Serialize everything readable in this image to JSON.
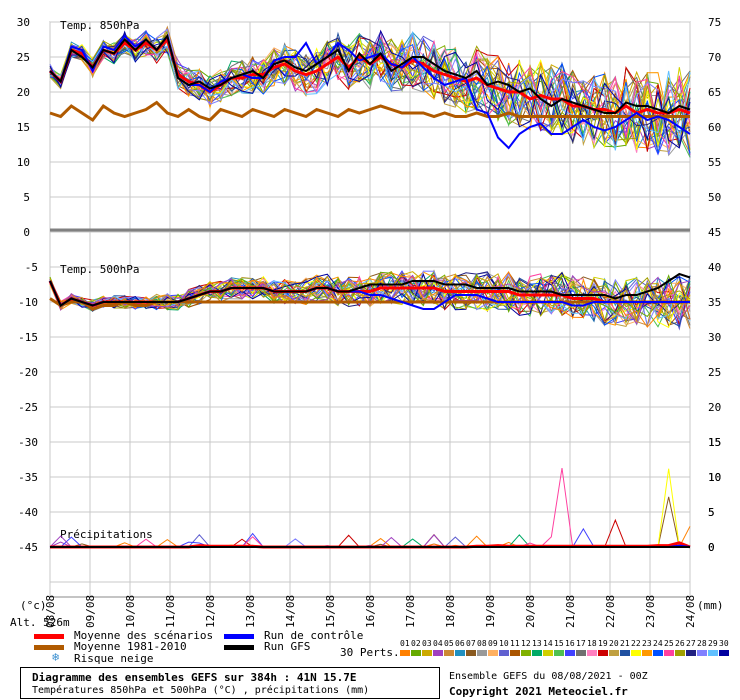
{
  "chart_data": [
    {
      "type": "line",
      "title": "Temp. 850hPa",
      "x_start": "08/08/2021",
      "x_tick_labels": [
        "08/08",
        "09/08",
        "10/08",
        "11/08",
        "12/08",
        "13/08",
        "14/08",
        "15/08",
        "16/08",
        "17/08",
        "18/08",
        "19/08",
        "20/08",
        "21/08",
        "22/08",
        "23/08",
        "24/08"
      ],
      "ylim_left": [
        -45,
        30
      ],
      "ylim_right": [
        0,
        75
      ],
      "y_ticks_left": [
        "30",
        "25",
        "20",
        "15",
        "10",
        "5",
        "0"
      ],
      "y_ticks_right": [
        "75",
        "70",
        "65",
        "60",
        "55",
        "50",
        "45"
      ],
      "series": [
        {
          "name": "Moyenne des scénarios",
          "color": "#ff0000",
          "values": [
            23,
            21.5,
            26,
            25.5,
            23.5,
            26,
            25.5,
            27,
            26,
            27,
            26,
            27.5,
            22.5,
            21.5,
            21,
            20,
            21,
            22,
            22,
            22.5,
            22.5,
            23.5,
            24,
            23,
            22.5,
            23,
            24,
            25,
            23.5,
            25,
            24,
            25,
            24,
            23.5,
            24.5,
            24,
            23,
            22.5,
            22,
            21.5,
            22,
            21,
            20.5,
            20,
            20,
            19,
            19.5,
            19,
            19,
            18,
            18,
            17.5,
            17.5,
            17,
            18,
            17,
            17.5,
            17,
            17,
            17.5,
            17
          ]
        },
        {
          "name": "Moyenne 1981-2010",
          "color": "#b05a00",
          "values": [
            17,
            16.5,
            18,
            17,
            16,
            18,
            17,
            16.5,
            17,
            17.5,
            18.5,
            17,
            16.5,
            17.5,
            16.5,
            16,
            17.5,
            17,
            16.5,
            17.5,
            17,
            16.5,
            17.5,
            17,
            16.5,
            17.5,
            17,
            16.5,
            17.5,
            17,
            17.5,
            18,
            17.5,
            17,
            17,
            17,
            16.5,
            17,
            16.5,
            16.5,
            17,
            16.5,
            16.5,
            17,
            16.5,
            16.5,
            16.5,
            16.5,
            16.5,
            16.5,
            16.5,
            16.5,
            16.5,
            16.5,
            16.5,
            16.5,
            16.5,
            16.5,
            16.5,
            16.5,
            16.5
          ]
        },
        {
          "name": "Run de contrôle",
          "color": "#0000ff",
          "values": [
            23,
            21.5,
            26.5,
            26,
            23,
            26.5,
            26,
            28,
            26.5,
            27.5,
            26,
            28,
            22,
            21,
            21,
            20,
            21.5,
            22,
            22.5,
            22,
            22,
            24.5,
            25,
            25,
            27,
            24,
            25,
            27,
            26,
            24.5,
            25,
            25.5,
            24,
            23.5,
            25,
            23.5,
            22,
            21,
            21.5,
            22,
            17.5,
            17,
            13.5,
            12,
            14,
            15,
            15.5,
            14,
            14,
            15,
            16,
            15,
            14.5,
            15,
            16,
            17,
            16,
            16.5,
            16,
            15,
            14
          ]
        },
        {
          "name": "Run GFS",
          "color": "#000000",
          "values": [
            23,
            21.5,
            26,
            25,
            23.5,
            26,
            25.5,
            27.5,
            26,
            27.5,
            26,
            28,
            22,
            21,
            21.5,
            20.5,
            21,
            22,
            22.5,
            23,
            22,
            24,
            24.5,
            23.5,
            23,
            24,
            25,
            26,
            23,
            25.5,
            24,
            25.5,
            23,
            24,
            25,
            25,
            24,
            23,
            22.5,
            22,
            23,
            21,
            21.5,
            21,
            20,
            20.5,
            19,
            18,
            19,
            18.5,
            18,
            17.5,
            17,
            17,
            18.5,
            18,
            18,
            17.5,
            17,
            18,
            17.5
          ]
        }
      ],
      "ensemble_members": 30,
      "ensemble_min_last": 9,
      "ensemble_max_last": 24
    },
    {
      "type": "line",
      "title": "Temp. 500hPa",
      "ylim_left": [
        -45,
        30
      ],
      "y_ticks_left": [
        "-5",
        "-10",
        "-15",
        "-20",
        "-25",
        "-30",
        "-35",
        "-40",
        "-45"
      ],
      "y_ticks_right": [
        "40",
        "35",
        "30",
        "25",
        "20",
        "15",
        "10",
        "5",
        "0"
      ],
      "series": [
        {
          "name": "Moyenne des scénarios",
          "color": "#ff0000",
          "values": [
            -7,
            -10.5,
            -9.5,
            -10,
            -10.5,
            -10,
            -10,
            -10,
            -10,
            -10,
            -10,
            -10,
            -10,
            -9.5,
            -9,
            -8.5,
            -8.5,
            -8,
            -8,
            -8,
            -8,
            -8.5,
            -8.5,
            -8.5,
            -8.5,
            -8,
            -8,
            -8.5,
            -8.5,
            -8.5,
            -8.5,
            -8,
            -8,
            -8,
            -8,
            -8,
            -8,
            -8.5,
            -8.5,
            -8.5,
            -8.5,
            -8.5,
            -8.5,
            -8.5,
            -9,
            -9,
            -9,
            -9,
            -9,
            -9.5,
            -9.5,
            -9.5,
            -10,
            -10,
            -10,
            -10,
            -10,
            -10,
            -10,
            -10,
            -10
          ]
        },
        {
          "name": "Moyenne 1981-2010",
          "color": "#b05a00",
          "values": [
            -9.5,
            -10.5,
            -10,
            -10,
            -11,
            -10.5,
            -10.5,
            -10,
            -10.5,
            -10.5,
            -10,
            -10,
            -10,
            -10,
            -10,
            -10,
            -10,
            -10,
            -10,
            -10,
            -10,
            -10,
            -10,
            -10,
            -10,
            -10,
            -10,
            -10,
            -10,
            -10,
            -10,
            -10,
            -10,
            -10,
            -10,
            -10,
            -10,
            -10,
            -10,
            -10,
            -10,
            -10,
            -10,
            -10,
            -10,
            -10,
            -10,
            -10,
            -10,
            -10,
            -10,
            -10,
            -10,
            -10,
            -10,
            -10,
            -10,
            -10,
            -10,
            -10,
            -10
          ]
        },
        {
          "name": "Run de contrôle",
          "color": "#0000ff",
          "values": [
            -7,
            -10.5,
            -9.5,
            -10,
            -10.5,
            -10,
            -10,
            -10,
            -10,
            -10,
            -10,
            -10,
            -10,
            -9.5,
            -9,
            -8.5,
            -8.5,
            -8,
            -8,
            -8,
            -8,
            -8.5,
            -8.5,
            -8.5,
            -8.5,
            -8,
            -8,
            -8.5,
            -8.5,
            -8.5,
            -9,
            -9,
            -9.5,
            -10,
            -10.5,
            -11,
            -11,
            -10,
            -9,
            -9,
            -9,
            -9.5,
            -10,
            -10,
            -10,
            -10,
            -10,
            -10,
            -10,
            -10.5,
            -10.5,
            -10,
            -10,
            -10,
            -10,
            -10,
            -10,
            -10,
            -10,
            -10,
            -10
          ]
        },
        {
          "name": "Run GFS",
          "color": "#000000",
          "values": [
            -7,
            -10.5,
            -9.5,
            -10,
            -10.5,
            -10,
            -10,
            -10,
            -10,
            -10,
            -10,
            -10,
            -10,
            -9.5,
            -9,
            -8.5,
            -8.5,
            -8,
            -8,
            -8,
            -8,
            -8.5,
            -8.5,
            -8.5,
            -8.5,
            -8,
            -8,
            -8.5,
            -8.5,
            -8,
            -7.5,
            -7.5,
            -7.5,
            -7.5,
            -7,
            -7,
            -7,
            -7.5,
            -7.5,
            -7.5,
            -8,
            -8,
            -8,
            -8,
            -8.5,
            -8.5,
            -8.5,
            -8.5,
            -9,
            -9,
            -9,
            -9,
            -9,
            -9.5,
            -9,
            -9,
            -8.5,
            -8,
            -7,
            -6,
            -6.5
          ]
        }
      ],
      "ensemble_members": 30
    },
    {
      "type": "line",
      "title": "Précipitations",
      "ylim_right": [
        0,
        45
      ],
      "y_ticks_right": [
        "15",
        "10",
        "5",
        "0"
      ],
      "series": [
        {
          "name": "Moyenne des scénarios",
          "color": "#ff0000",
          "values": [
            0,
            0,
            0,
            0,
            0,
            0,
            0,
            0,
            0,
            0,
            0,
            0,
            0,
            0,
            0.2,
            0.1,
            0.1,
            0.1,
            0.1,
            0.1,
            0,
            0,
            0,
            0,
            0,
            0,
            0,
            0,
            0,
            0,
            0,
            0,
            0,
            0,
            0,
            0,
            0,
            0,
            0,
            0,
            0.1,
            0.1,
            0.2,
            0.1,
            0.1,
            0.1,
            0.1,
            0.1,
            0.1,
            0.1,
            0.1,
            0.1,
            0.1,
            0.1,
            0.1,
            0.1,
            0.1,
            0.2,
            0.2,
            0.6,
            0
          ]
        },
        {
          "name": "Run de contrôle",
          "color": "#0000ff",
          "values": [
            0,
            0,
            0,
            0,
            0,
            0,
            0,
            0,
            0,
            0,
            0,
            0,
            0,
            0,
            0,
            0,
            0,
            0,
            0,
            0,
            0,
            0,
            0,
            0,
            0,
            0,
            0,
            0,
            0,
            0,
            0,
            0,
            0,
            0,
            0,
            0,
            0,
            0,
            0,
            0,
            0,
            0,
            0,
            0,
            0,
            0,
            0,
            0,
            0,
            0,
            0,
            0,
            0,
            0,
            0,
            0,
            0,
            0,
            0,
            0.2,
            0
          ]
        },
        {
          "name": "Run GFS",
          "color": "#000000",
          "values": [
            0,
            0,
            0,
            0,
            0,
            0,
            0,
            0,
            0,
            0,
            0,
            0,
            0,
            0,
            0,
            0,
            0,
            0,
            0,
            0,
            0,
            0,
            0,
            0,
            0,
            0,
            0,
            0,
            0,
            0,
            0,
            0,
            0,
            0,
            0,
            0,
            0,
            0,
            0,
            0,
            0,
            0,
            0,
            0,
            0,
            0,
            0,
            0,
            0,
            0,
            0,
            0,
            0,
            0,
            0,
            0,
            0,
            0,
            0,
            0,
            0
          ]
        }
      ],
      "ensemble_max": 13
    }
  ],
  "axis_units_left": "(°c)",
  "axis_units_right": "(mm)",
  "altitude": "Alt. 526m",
  "legend": {
    "mean": "Moyenne des scénarios",
    "climate": "Moyenne 1981-2010",
    "snow": "Risque neige",
    "control": "Run de contrôle",
    "gfs": "Run GFS",
    "perts": "30 Perts."
  },
  "perts_numbers": [
    "01",
    "02",
    "03",
    "04",
    "05",
    "06",
    "07",
    "08",
    "09",
    "10",
    "11",
    "12",
    "13",
    "14",
    "15",
    "16",
    "17",
    "18",
    "19",
    "20",
    "21",
    "22",
    "23",
    "24",
    "25",
    "26",
    "27",
    "28",
    "29",
    "30"
  ],
  "perts_colors": [
    "#ff8000",
    "#66aa00",
    "#ccaa00",
    "#a040c0",
    "#cc8833",
    "#2090c0",
    "#8a5a20",
    "#999999",
    "#ffb060",
    "#6060d0",
    "#aa5500",
    "#80b000",
    "#00aa66",
    "#d0d000",
    "#50c050",
    "#4040ff",
    "#707070",
    "#ff80c0",
    "#cc0000",
    "#c0a040",
    "#2050a0",
    "#ffff00",
    "#ff9900",
    "#0050ff",
    "#ff40a0",
    "#a0a000",
    "#202080",
    "#8080ff",
    "#60c0ff",
    "#0000a0"
  ],
  "footer": {
    "title": "Diagramme des ensembles GEFS sur 384h : 41N 15.7E",
    "subtitle": "Températures 850hPa et 500hPa (°C) , précipitations (mm)",
    "run": "Ensemble GEFS du 08/08/2021 - 00Z",
    "copyright": "Copyright 2021 Meteociel.fr"
  },
  "colors": {
    "grid": "#c8c8c8",
    "separator": "#808080"
  }
}
